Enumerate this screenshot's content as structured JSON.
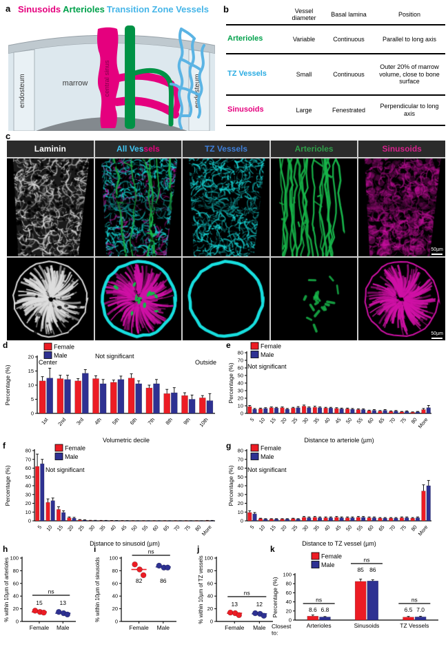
{
  "panel_a": {
    "label": "a",
    "title_parts": [
      {
        "text": "Sinusoids",
        "color": "#e5007e"
      },
      {
        "text": "Arterioles",
        "color": "#00a14b"
      },
      {
        "text": "Transition Zone Vessels",
        "color": "#45b5e8"
      }
    ],
    "labels": {
      "endosteum_left": "endosteum",
      "endosteum_right": "endosteum",
      "marrow": "marrow",
      "central_sinus": "central sinus"
    }
  },
  "panel_b": {
    "label": "b",
    "columns": [
      "Vessel diameter",
      "Basal lamina",
      "Position"
    ],
    "rows": [
      {
        "name": "Arterioles",
        "color": "#00a14b",
        "diameter": "Variable",
        "lamina": "Continuous",
        "position": "Parallel to long axis"
      },
      {
        "name": "TZ Vessels",
        "color": "#29abe2",
        "diameter": "Small",
        "lamina": "Continuous",
        "position": "Outer 20% of marrow volume, close to bone surface"
      },
      {
        "name": "Sinusoids",
        "color": "#e5007e",
        "diameter": "Large",
        "lamina": "Fenestrated",
        "position": "Perpendicular to long axis"
      }
    ]
  },
  "panel_c": {
    "label": "c",
    "scale_bar": "50µm",
    "columns": [
      {
        "kind": "laminin",
        "title_parts": [
          {
            "text": "Laminin",
            "color": "#ffffff"
          }
        ]
      },
      {
        "kind": "all",
        "title_parts": [
          {
            "text": "All Ves",
            "color": "#3fc2ee"
          },
          {
            "text": "sels",
            "color": "#e5007e"
          }
        ]
      },
      {
        "kind": "tz",
        "title_parts": [
          {
            "text": "TZ Vessels",
            "color": "#3e7ed8"
          }
        ]
      },
      {
        "kind": "art",
        "title_parts": [
          {
            "text": "Arterioles",
            "color": "#2f9e49"
          }
        ]
      },
      {
        "kind": "sin",
        "title_parts": [
          {
            "text": "Sinusoids",
            "color": "#d6218c"
          }
        ]
      }
    ]
  },
  "chart_data": [
    {
      "id": "d",
      "panel_label": "d",
      "type": "bar",
      "title": "",
      "ylabel": "Percentage (%)",
      "xlabel": "Volumetric decile",
      "ylim": [
        0,
        20
      ],
      "ystep": 5,
      "legend": [
        "Female",
        "Male"
      ],
      "note": "Not significant",
      "note_left": "Center",
      "note_right": "Outside",
      "categories": [
        "1st",
        "2nd",
        "3rd",
        "4th",
        "5th",
        "6th",
        "7th",
        "8th",
        "9th",
        "10th"
      ],
      "series": [
        {
          "name": "Female",
          "color": "#ec1c24",
          "values": [
            11.5,
            12.3,
            11.5,
            12.3,
            11,
            12.5,
            9,
            7,
            6.3,
            5.5
          ],
          "errors": [
            1.5,
            1.2,
            0.8,
            1,
            0.8,
            1.5,
            1,
            1.5,
            1,
            0.8
          ]
        },
        {
          "name": "Male",
          "color": "#2e3192",
          "values": [
            12.5,
            12,
            14.2,
            10.5,
            12,
            10.5,
            10.5,
            7.3,
            5,
            4.5
          ],
          "errors": [
            3.5,
            1.5,
            1.3,
            1.5,
            1.2,
            1,
            1.5,
            1.8,
            1.5,
            2.5
          ]
        }
      ]
    },
    {
      "id": "e",
      "panel_label": "e",
      "type": "bar",
      "title": "",
      "ylabel": "Percentage (%)",
      "xlabel": "Distance to arteriole (µm)",
      "ylim": [
        0,
        80
      ],
      "ystep": 10,
      "legend": [
        "Female",
        "Male"
      ],
      "note": "Not significant",
      "categories": [
        "5",
        "10",
        "15",
        "20",
        "25",
        "30",
        "35",
        "40",
        "45",
        "50",
        "55",
        "60",
        "65",
        "70",
        "75",
        "80",
        "More"
      ],
      "series": [
        {
          "name": "Female",
          "color": "#ec1c24",
          "values": [
            9,
            6,
            7.5,
            7.5,
            7,
            9.5,
            8,
            7,
            6.5,
            6,
            5,
            3.5,
            3,
            2.5,
            2,
            1.5,
            5
          ],
          "errors": [
            1.5,
            1,
            1,
            1,
            1,
            1.5,
            1.5,
            1,
            1,
            1,
            1,
            0.8,
            0.8,
            0.8,
            0.6,
            0.5,
            1.5
          ]
        },
        {
          "name": "Male",
          "color": "#2e3192",
          "values": [
            5.5,
            6.5,
            7,
            5.5,
            7.5,
            7.5,
            7.5,
            7,
            6,
            5.5,
            5,
            4,
            4,
            3,
            2.5,
            2,
            7.5
          ],
          "errors": [
            1,
            1,
            1,
            1,
            1.5,
            1,
            1,
            1,
            1,
            1,
            1,
            1,
            1,
            0.8,
            0.8,
            0.6,
            3
          ]
        }
      ]
    },
    {
      "id": "f",
      "panel_label": "f",
      "type": "bar",
      "title": "",
      "ylabel": "Percentage (%)",
      "xlabel": "Distance to sinusoid (µm)",
      "ylim": [
        0,
        80
      ],
      "ystep": 10,
      "legend": [
        "Female",
        "Male"
      ],
      "note": "Not significant",
      "categories": [
        "5",
        "10",
        "15",
        "20",
        "25",
        "30",
        "35",
        "40",
        "45",
        "50",
        "55",
        "60",
        "65",
        "70",
        "75",
        "80",
        "More"
      ],
      "series": [
        {
          "name": "Female",
          "color": "#ec1c24",
          "values": [
            62,
            21,
            13,
            3.5,
            1,
            0.4,
            0.3,
            0.2,
            0.2,
            0.1,
            0.1,
            0.1,
            0.1,
            0.1,
            0.1,
            0.1,
            0.3
          ],
          "errors": [
            14,
            4,
            3,
            1,
            0.5,
            0.2,
            0.2,
            0.2,
            0.1,
            0.1,
            0.1,
            0.1,
            0.1,
            0.1,
            0.1,
            0.1,
            0.2
          ]
        },
        {
          "name": "Male",
          "color": "#2e3192",
          "values": [
            65,
            23,
            9.5,
            3,
            0.8,
            0.4,
            0.3,
            0.2,
            0.2,
            0.1,
            0.1,
            0.1,
            0.1,
            0.1,
            0.1,
            0.1,
            0.3
          ],
          "errors": [
            5,
            3,
            2,
            1,
            0.4,
            0.2,
            0.2,
            0.2,
            0.1,
            0.1,
            0.1,
            0.1,
            0.1,
            0.1,
            0.1,
            0.1,
            0.2
          ]
        }
      ]
    },
    {
      "id": "g",
      "panel_label": "g",
      "type": "bar",
      "title": "",
      "ylabel": "Percentage (%)",
      "xlabel": "Distance to TZ vessel (µm)",
      "ylim": [
        0,
        80
      ],
      "ystep": 10,
      "legend": [
        "Female",
        "Male"
      ],
      "note": "Not significant",
      "categories": [
        "5",
        "10",
        "15",
        "20",
        "25",
        "30",
        "35",
        "40",
        "45",
        "50",
        "55",
        "60",
        "65",
        "70",
        "75",
        "80",
        "More"
      ],
      "series": [
        {
          "name": "Female",
          "color": "#ec1c24",
          "values": [
            9.5,
            2.5,
            2,
            2,
            2.5,
            4,
            4,
            3.5,
            4,
            3.5,
            4,
            3.5,
            3,
            3,
            3.5,
            3,
            34
          ],
          "errors": [
            2,
            0.5,
            0.5,
            0.5,
            0.5,
            1,
            1,
            1,
            1,
            1,
            1,
            1,
            0.8,
            0.8,
            1,
            0.8,
            7
          ]
        },
        {
          "name": "Male",
          "color": "#2e3192",
          "values": [
            8,
            2,
            2,
            2,
            2,
            3.5,
            3.5,
            3.5,
            3.5,
            3.5,
            4,
            3.5,
            3,
            3,
            3.5,
            3.5,
            40
          ],
          "errors": [
            1.5,
            0.5,
            0.5,
            0.5,
            0.5,
            1,
            1,
            1,
            1,
            1,
            1,
            1,
            0.8,
            0.8,
            1,
            1,
            6
          ]
        }
      ]
    },
    {
      "id": "h",
      "panel_label": "h",
      "type": "scatter",
      "ylabel": "% within 10µm of arterioles",
      "ylim": [
        0,
        100
      ],
      "ystep": 20,
      "ns": "ns",
      "groups": [
        {
          "name": "Female",
          "color": "#ec1c24",
          "values": [
            17,
            15,
            14
          ],
          "mean": 15,
          "label": "15"
        },
        {
          "name": "Male",
          "color": "#2e3192",
          "values": [
            15,
            13,
            11
          ],
          "mean": 13,
          "label": "13"
        }
      ]
    },
    {
      "id": "i",
      "panel_label": "i",
      "type": "scatter",
      "ylabel": "% within 10µm of sinusoids",
      "ylim": [
        0,
        100
      ],
      "ystep": 20,
      "ns": "ns",
      "groups": [
        {
          "name": "Female",
          "color": "#ec1c24",
          "values": [
            90,
            82,
            73
          ],
          "mean": 82,
          "label": "82"
        },
        {
          "name": "Male",
          "color": "#2e3192",
          "values": [
            88,
            85,
            85
          ],
          "mean": 86,
          "label": "86"
        }
      ]
    },
    {
      "id": "j",
      "panel_label": "j",
      "type": "scatter",
      "ylabel": "% within 10µm of TZ vessels",
      "ylim": [
        0,
        100
      ],
      "ystep": 20,
      "ns": "ns",
      "groups": [
        {
          "name": "Female",
          "color": "#ec1c24",
          "values": [
            14,
            13,
            10
          ],
          "mean": 13,
          "label": "13"
        },
        {
          "name": "Male",
          "color": "#2e3192",
          "values": [
            13,
            12,
            9
          ],
          "mean": 12,
          "label": "12"
        }
      ]
    },
    {
      "id": "k",
      "panel_label": "k",
      "type": "bar",
      "title": "",
      "ylabel": "Percentage (%)",
      "xlabel": "",
      "xlabel_left": "Closest to:",
      "ylim": [
        0,
        100
      ],
      "ystep": 20,
      "legend": [
        "Female",
        "Male"
      ],
      "categories": [
        "Arterioles",
        "Sinusoids",
        "TZ Vessels"
      ],
      "ns": [
        "ns",
        "ns",
        "ns"
      ],
      "bar_labels": [
        [
          "8.6",
          "6.8"
        ],
        [
          "85",
          "86"
        ],
        [
          "6.5",
          "7.0"
        ]
      ],
      "series": [
        {
          "name": "Female",
          "color": "#ec1c24",
          "values": [
            8.6,
            85,
            6.5
          ],
          "errors": [
            2.5,
            5,
            1.5
          ]
        },
        {
          "name": "Male",
          "color": "#2e3192",
          "values": [
            6.8,
            86,
            7.0
          ],
          "errors": [
            1,
            2.5,
            1.5
          ]
        }
      ]
    }
  ]
}
